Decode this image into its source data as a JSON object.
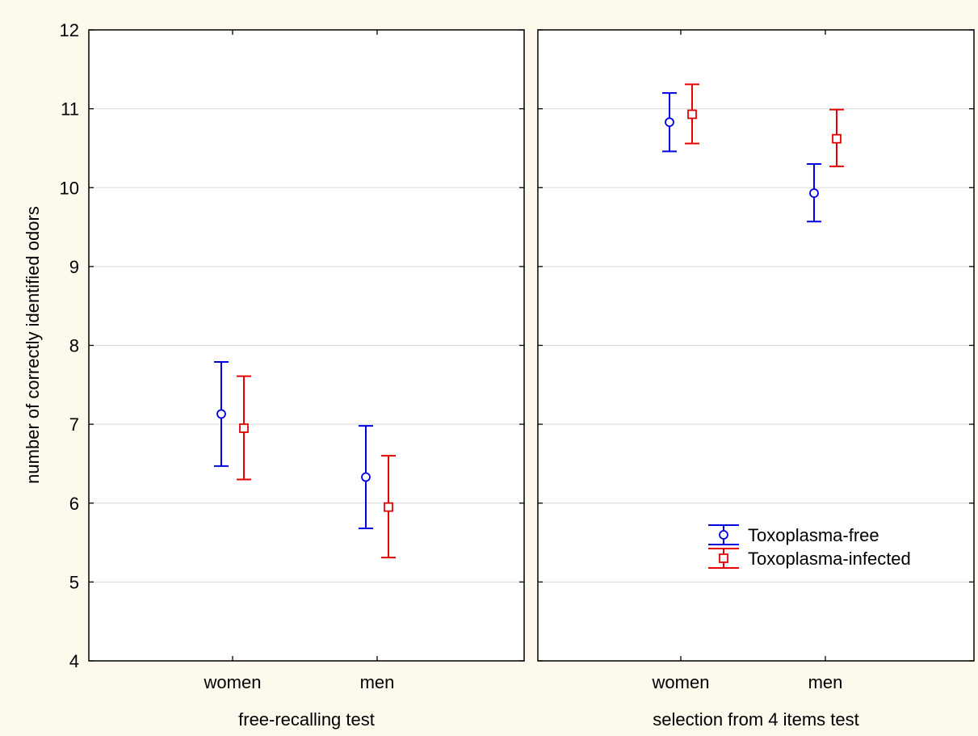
{
  "chart_data": {
    "type": "scatter",
    "ylabel": "number of correctly identified odors",
    "ylim": [
      4,
      12
    ],
    "yticks": [
      4,
      5,
      6,
      7,
      8,
      9,
      10,
      11,
      12
    ],
    "grid": true,
    "panels": [
      {
        "xlabel": "free-recalling test",
        "categories": [
          "women",
          "men"
        ],
        "series": [
          {
            "name": "Toxoplasma-free",
            "color": "#0000e6",
            "marker": "circle",
            "points": [
              {
                "x": "women",
                "y": 7.13,
                "low": 6.47,
                "high": 7.79
              },
              {
                "x": "men",
                "y": 6.33,
                "low": 5.68,
                "high": 6.98
              }
            ]
          },
          {
            "name": "Toxoplasma-infected",
            "color": "#e60000",
            "marker": "square",
            "points": [
              {
                "x": "women",
                "y": 6.95,
                "low": 6.3,
                "high": 7.61
              },
              {
                "x": "men",
                "y": 5.95,
                "low": 5.31,
                "high": 6.6
              }
            ]
          }
        ]
      },
      {
        "xlabel": "selection from 4 items test",
        "categories": [
          "women",
          "men"
        ],
        "series": [
          {
            "name": "Toxoplasma-free",
            "color": "#0000e6",
            "marker": "circle",
            "points": [
              {
                "x": "women",
                "y": 10.83,
                "low": 10.46,
                "high": 11.2
              },
              {
                "x": "men",
                "y": 9.93,
                "low": 9.57,
                "high": 10.3
              }
            ]
          },
          {
            "name": "Toxoplasma-infected",
            "color": "#e60000",
            "marker": "square",
            "points": [
              {
                "x": "women",
                "y": 10.93,
                "low": 10.56,
                "high": 11.31
              },
              {
                "x": "men",
                "y": 10.62,
                "low": 10.27,
                "high": 10.99
              }
            ]
          }
        ]
      }
    ],
    "legend": {
      "placement": "bottom-right of second panel",
      "entries": [
        "Toxoplasma-free",
        "Toxoplasma-infected"
      ]
    }
  }
}
